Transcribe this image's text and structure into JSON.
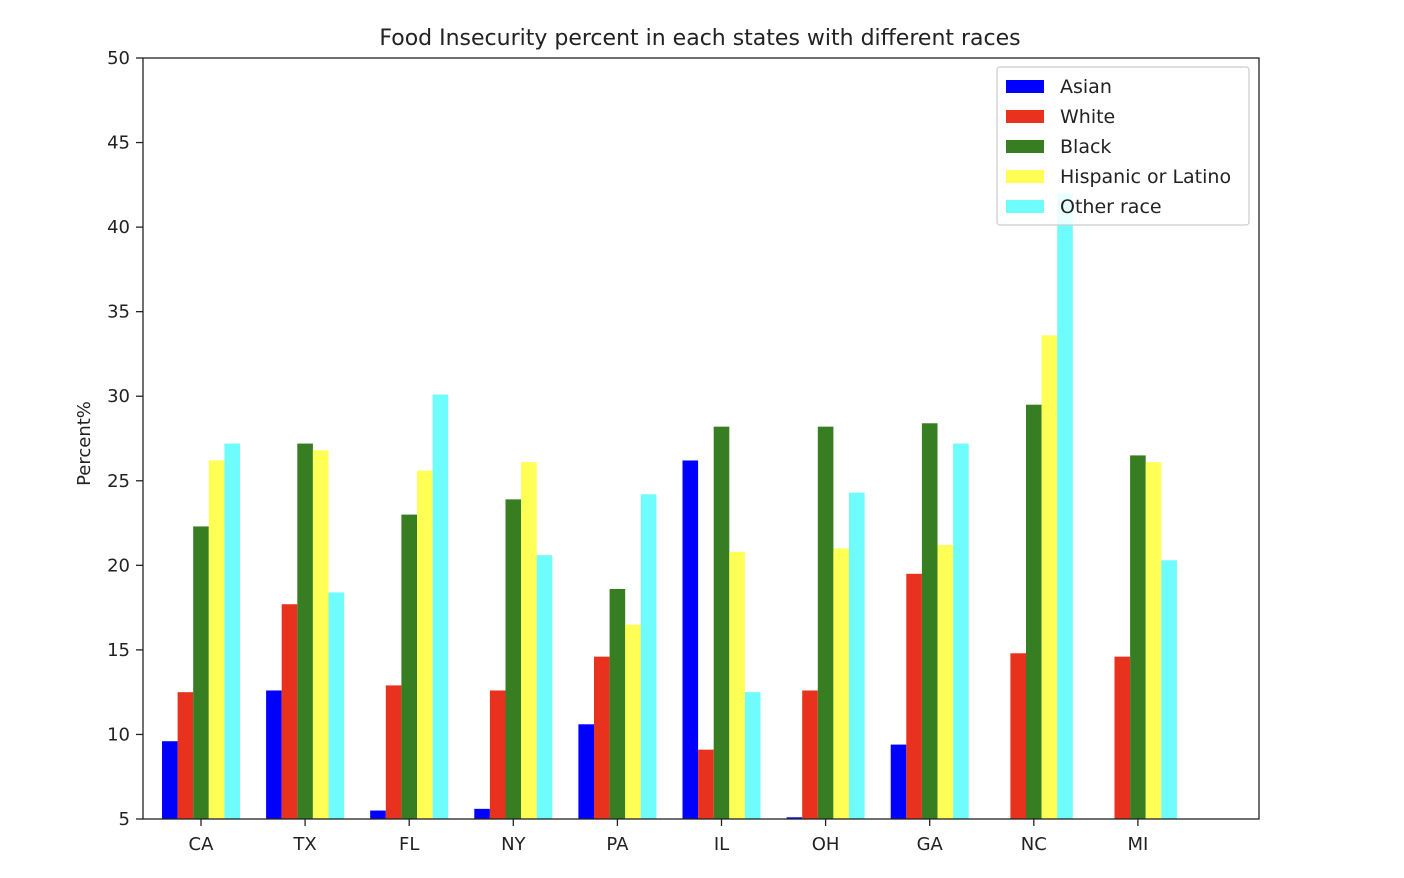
{
  "chart_data": {
    "type": "bar",
    "title": "Food Insecurity percent in each states with different races",
    "xlabel": "",
    "ylabel": "Percent%",
    "ylim": [
      5,
      50
    ],
    "yticks": [
      5,
      10,
      15,
      20,
      25,
      30,
      35,
      40,
      45,
      50
    ],
    "categories": [
      "CA",
      "TX",
      "FL",
      "NY",
      "PA",
      "IL",
      "OH",
      "GA",
      "NC",
      "MI"
    ],
    "grid": false,
    "legend_position": "top-right",
    "series": [
      {
        "name": "Asian",
        "color": "#0000ff",
        "values": [
          9.6,
          12.6,
          5.5,
          5.6,
          10.6,
          26.2,
          5.1,
          9.4,
          null,
          null
        ]
      },
      {
        "name": "White",
        "color": "#e8321e",
        "values": [
          12.5,
          17.7,
          12.9,
          12.6,
          14.6,
          9.1,
          12.6,
          19.5,
          14.8,
          14.6
        ]
      },
      {
        "name": "Black",
        "color": "#377d22",
        "values": [
          22.3,
          27.2,
          23.0,
          23.9,
          18.6,
          28.2,
          28.2,
          28.4,
          29.5,
          26.5
        ]
      },
      {
        "name": "Hispanic or Latino",
        "color": "#ffff55",
        "values": [
          26.2,
          26.8,
          25.6,
          26.1,
          16.5,
          20.8,
          21.0,
          21.2,
          33.6,
          26.1
        ]
      },
      {
        "name": "Other race",
        "color": "#6ffcfc",
        "values": [
          27.2,
          18.4,
          30.1,
          20.6,
          24.2,
          12.5,
          24.3,
          27.2,
          42.0,
          20.3
        ]
      }
    ]
  }
}
